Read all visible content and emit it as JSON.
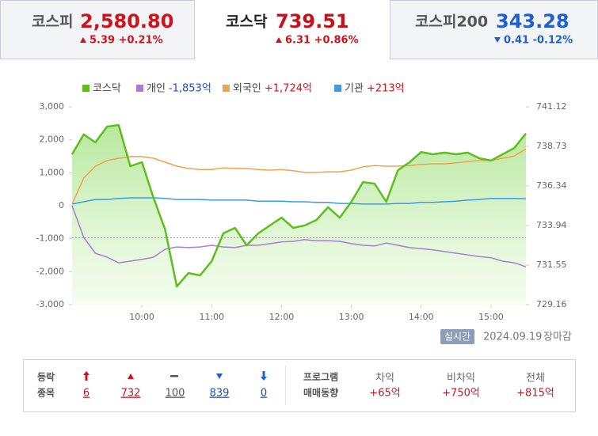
{
  "tabs": [
    {
      "name": "코스피",
      "value": "2,580.80",
      "change": "5.39 +0.21%",
      "direction": "up"
    },
    {
      "name": "코스닥",
      "value": "739.51",
      "change": "6.31 +0.86%",
      "direction": "up"
    },
    {
      "name": "코스피200",
      "value": "343.28",
      "change": "0.41 -0.12%",
      "direction": "down"
    }
  ],
  "active_tab": 1,
  "chart_data": {
    "type": "line",
    "x": [
      "09:00",
      "09:10",
      "09:20",
      "09:30",
      "09:40",
      "09:50",
      "10:00",
      "10:10",
      "10:20",
      "10:30",
      "10:40",
      "10:50",
      "11:00",
      "11:10",
      "11:20",
      "11:30",
      "11:40",
      "11:50",
      "12:00",
      "12:10",
      "12:20",
      "12:30",
      "12:40",
      "12:50",
      "13:00",
      "13:10",
      "13:20",
      "13:30",
      "13:40",
      "13:50",
      "14:00",
      "14:10",
      "14:20",
      "14:30",
      "14:40",
      "14:50",
      "15:00",
      "15:10",
      "15:20",
      "15:30"
    ],
    "xlim": [
      "09:00",
      "15:30"
    ],
    "xticks": [
      "10:00",
      "11:00",
      "12:00",
      "13:00",
      "14:00",
      "15:00"
    ],
    "ylim": [
      -3000,
      3000
    ],
    "yticks": [
      {
        "value": -3000,
        "label": "-3,000"
      },
      {
        "value": -2000,
        "label": "-2,000"
      },
      {
        "value": -1000,
        "label": "-1,000"
      },
      0,
      {
        "value": 1000,
        "label": "1,000"
      },
      {
        "value": 2000,
        "label": "2,000"
      },
      {
        "value": 3000,
        "label": "3,000"
      }
    ],
    "y2lim": [
      729.16,
      741.12
    ],
    "y2ticks": [
      729.16,
      731.55,
      733.94,
      736.34,
      738.73,
      741.12
    ],
    "reference_line": 733.2,
    "series": [
      {
        "name": "코스닥",
        "color": "#5cbf1c",
        "axis": "y2",
        "area": true,
        "values": [
          738.25,
          739.45,
          738.97,
          739.92,
          740.02,
          737.53,
          737.77,
          735.62,
          733.7,
          730.26,
          731.07,
          730.93,
          731.79,
          733.47,
          733.8,
          732.75,
          733.47,
          733.95,
          734.42,
          733.8,
          733.95,
          734.28,
          735.05,
          734.42,
          735.38,
          736.57,
          736.47,
          735.38,
          737.29,
          737.77,
          738.39,
          738.25,
          738.35,
          738.25,
          738.35,
          738.01,
          737.87,
          738.25,
          738.63,
          739.51
        ]
      },
      {
        "name": "개인",
        "color": "#a57ed6",
        "legend_value": "-1,853억",
        "legend_value_color": "#1f4fb4",
        "values": [
          0,
          -960,
          -1440,
          -1560,
          -1730,
          -1680,
          -1630,
          -1560,
          -1320,
          -1250,
          -1270,
          -1250,
          -1200,
          -1250,
          -1270,
          -1200,
          -1200,
          -1150,
          -1100,
          -1080,
          -1030,
          -1060,
          -1060,
          -1080,
          -1150,
          -1200,
          -1220,
          -1130,
          -1200,
          -1270,
          -1300,
          -1340,
          -1390,
          -1440,
          -1490,
          -1540,
          -1580,
          -1680,
          -1730,
          -1853
        ]
      },
      {
        "name": "외국인",
        "color": "#f5a04a",
        "legend_value": "+1,724억",
        "legend_value_color": "#d0121b",
        "values": [
          50,
          840,
          1200,
          1370,
          1440,
          1490,
          1490,
          1440,
          1320,
          1200,
          1130,
          1100,
          1100,
          1150,
          1130,
          1130,
          1100,
          1080,
          1100,
          1060,
          1010,
          1010,
          1030,
          1030,
          1080,
          1180,
          1220,
          1200,
          1200,
          1220,
          1250,
          1270,
          1270,
          1300,
          1340,
          1370,
          1370,
          1440,
          1510,
          1724
        ]
      },
      {
        "name": "기관",
        "color": "#3a9be6",
        "legend_value": "+213억",
        "legend_value_color": "#d0121b",
        "values": [
          50,
          120,
          190,
          190,
          220,
          240,
          240,
          240,
          220,
          190,
          190,
          190,
          170,
          170,
          170,
          170,
          140,
          140,
          140,
          120,
          120,
          100,
          100,
          70,
          70,
          50,
          50,
          50,
          70,
          70,
          100,
          100,
          120,
          140,
          170,
          190,
          220,
          220,
          220,
          213
        ]
      }
    ]
  },
  "status": {
    "badge": "실시간",
    "date": "2024.09.19",
    "state": "장마감"
  },
  "breadth": {
    "label": [
      "등락",
      "종목"
    ],
    "values": [
      6,
      732,
      100,
      839,
      0
    ]
  },
  "program": {
    "label": [
      "프로그램",
      "매매동향"
    ],
    "columns": [
      {
        "name": "차익",
        "value": "+65억"
      },
      {
        "name": "비차익",
        "value": "+750억"
      },
      {
        "name": "전체",
        "value": "+815억"
      }
    ]
  }
}
